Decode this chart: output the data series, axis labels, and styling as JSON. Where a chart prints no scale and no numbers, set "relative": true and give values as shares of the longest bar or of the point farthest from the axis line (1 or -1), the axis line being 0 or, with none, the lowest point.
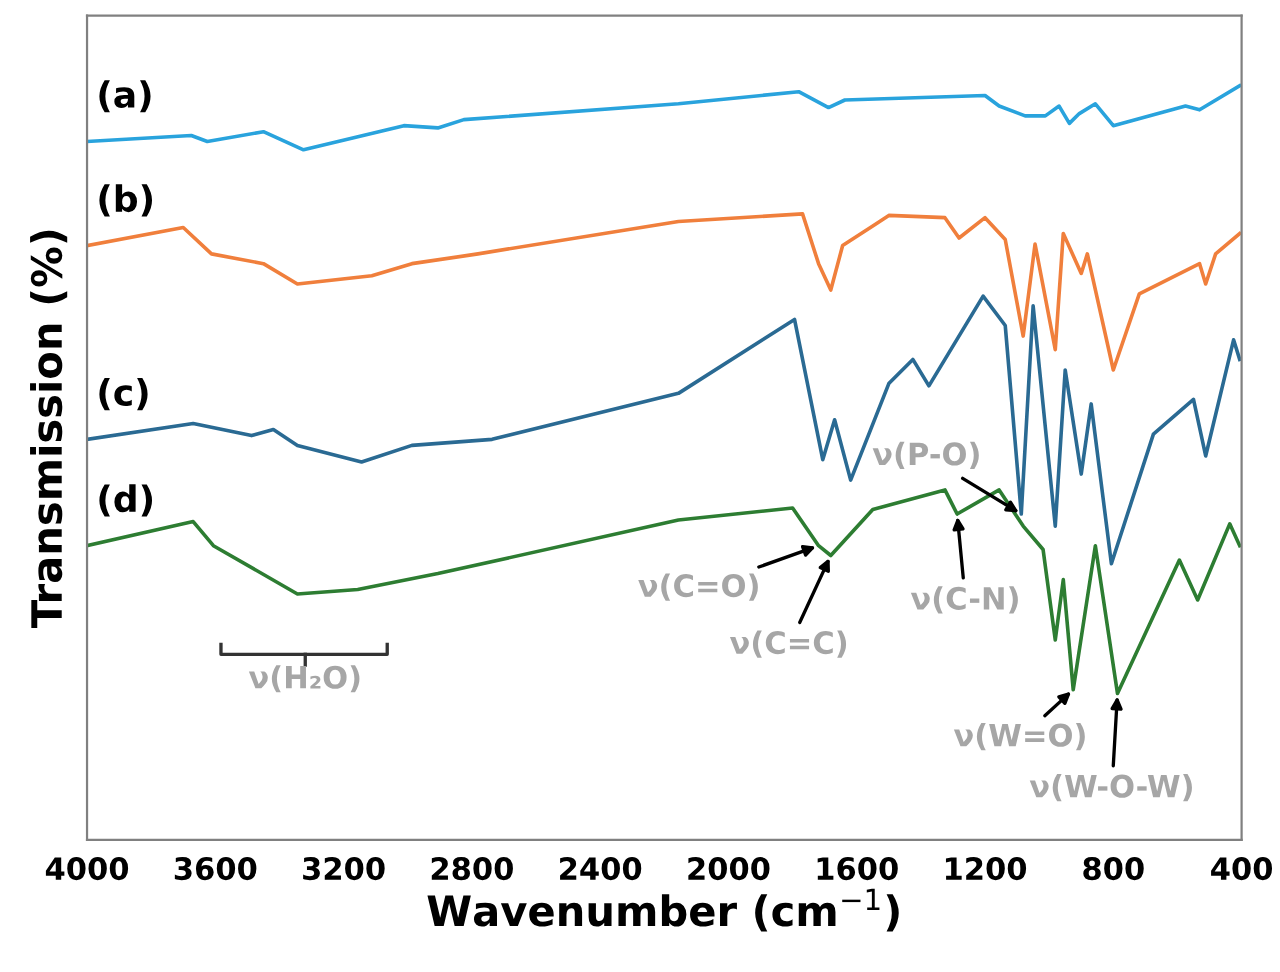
{
  "chart_data": {
    "type": "line",
    "relative": true,
    "xlabel": "Wavenumber (cm$^{−1}$)",
    "ylabel": "Transmission (%)",
    "xlim": [
      4000,
      400
    ],
    "xticks": [
      4000,
      3600,
      3200,
      2800,
      2400,
      2000,
      1600,
      1200,
      800,
      400
    ],
    "tick_labels": "x",
    "grid": false,
    "legend": false,
    "series": [
      {
        "name": "(a)",
        "color": "#29a3dd",
        "x": [
          4000,
          3675,
          3625,
          3450,
          3325,
          3012,
          2906,
          2825,
          2156,
          1781,
          1688,
          1637,
          1200,
          1156,
          1075,
          1012,
          969,
          937,
          906,
          856,
          800,
          575,
          531,
          406
        ],
        "values": [
          0.926,
          0.934,
          0.926,
          0.939,
          0.915,
          0.947,
          0.944,
          0.955,
          0.976,
          0.992,
          0.971,
          0.981,
          0.987,
          0.973,
          0.96,
          0.96,
          0.973,
          0.95,
          0.963,
          0.976,
          0.947,
          0.973,
          0.968,
          1.0
        ]
      },
      {
        "name": "(b)",
        "color": "#f07f3c",
        "x": [
          4000,
          3700,
          3612,
          3450,
          3344,
          3112,
          2987,
          2781,
          2156,
          1769,
          1719,
          1681,
          1644,
          1550,
          1500,
          1325,
          1281,
          1200,
          1137,
          1081,
          1044,
          981,
          956,
          900,
          881,
          800,
          719,
          531,
          512,
          481,
          406
        ],
        "values": [
          0.788,
          0.812,
          0.777,
          0.764,
          0.737,
          0.748,
          0.764,
          0.777,
          0.82,
          0.83,
          0.764,
          0.729,
          0.788,
          0.814,
          0.828,
          0.825,
          0.798,
          0.825,
          0.796,
          0.668,
          0.79,
          0.65,
          0.804,
          0.751,
          0.777,
          0.623,
          0.724,
          0.764,
          0.737,
          0.777,
          0.804
        ]
      },
      {
        "name": "(c)",
        "color": "#2a6a93",
        "x": [
          4000,
          3669,
          3487,
          3419,
          3344,
          3144,
          2987,
          2737,
          2156,
          1794,
          1706,
          1669,
          1619,
          1500,
          1425,
          1375,
          1206,
          1137,
          1087,
          1050,
          981,
          950,
          900,
          869,
          806,
          675,
          550,
          512,
          425,
          406
        ],
        "values": [
          0.531,
          0.552,
          0.536,
          0.544,
          0.523,
          0.501,
          0.523,
          0.531,
          0.592,
          0.69,
          0.504,
          0.557,
          0.477,
          0.605,
          0.637,
          0.602,
          0.721,
          0.682,
          0.432,
          0.708,
          0.416,
          0.623,
          0.485,
          0.578,
          0.366,
          0.538,
          0.584,
          0.509,
          0.663,
          0.637
        ]
      },
      {
        "name": "(d)",
        "color": "#2d7d32",
        "x": [
          4000,
          3669,
          3606,
          3344,
          3156,
          2906,
          2156,
          1800,
          1719,
          1681,
          1550,
          1325,
          1287,
          1156,
          1081,
          1019,
          981,
          956,
          925,
          856,
          787,
          594,
          537,
          437,
          406
        ],
        "values": [
          0.39,
          0.422,
          0.39,
          0.326,
          0.332,
          0.353,
          0.424,
          0.44,
          0.39,
          0.377,
          0.438,
          0.464,
          0.432,
          0.464,
          0.416,
          0.385,
          0.265,
          0.345,
          0.199,
          0.39,
          0.194,
          0.371,
          0.318,
          0.419,
          0.39
        ]
      }
    ],
    "annotations": [
      "ν(H₂O)",
      {
        "text": "ν(C=O)",
        "x": 1719,
        "y": 0.39
      },
      {
        "text": "ν(C=C)",
        "x": 1681,
        "y": 0.377
      },
      {
        "text": "ν(C-N)",
        "x": 1287,
        "y": 0.432
      },
      {
        "text": "ν(P-O)",
        "x": 1087,
        "y": 0.432
      },
      {
        "text": "ν(W=O)",
        "x": 925,
        "y": 0.199
      },
      {
        "text": "ν(W-O-W)",
        "x": 787,
        "y": 0.194
      }
    ]
  }
}
